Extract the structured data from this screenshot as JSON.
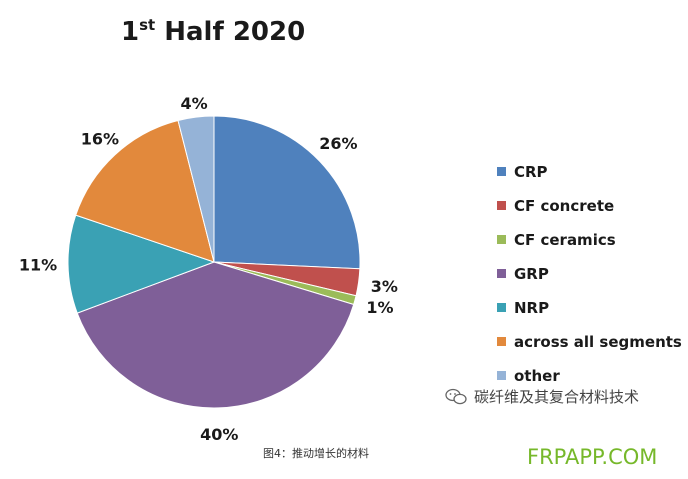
{
  "chart_data": {
    "type": "pie",
    "title_main": "1",
    "title_sup": "st",
    "title_rest": " Half 2020",
    "slices": [
      {
        "name": "CRP",
        "value": 26,
        "label": "26%",
        "color": "#4f81bd"
      },
      {
        "name": "CF concrete",
        "value": 3,
        "label": "3%",
        "color": "#c0504d"
      },
      {
        "name": "CF ceramics",
        "value": 1,
        "label": "1%",
        "color": "#9bbb59"
      },
      {
        "name": "GRP",
        "value": 40,
        "label": "40%",
        "color": "#7f5f98"
      },
      {
        "name": "NRP",
        "value": 11,
        "label": "11%",
        "color": "#3aa1b4"
      },
      {
        "name": "across all segments",
        "value": 16,
        "label": "16%",
        "color": "#e2893c"
      },
      {
        "name": "other",
        "value": 4,
        "label": "4%",
        "color": "#95b3d7"
      }
    ],
    "legend_position": "right"
  },
  "watermark": {
    "text": "碳纤维及其复合材料技术",
    "icon": "wechat-icon"
  },
  "caption": "图4：推动增长的材料",
  "site": "FRPAPP.COM"
}
